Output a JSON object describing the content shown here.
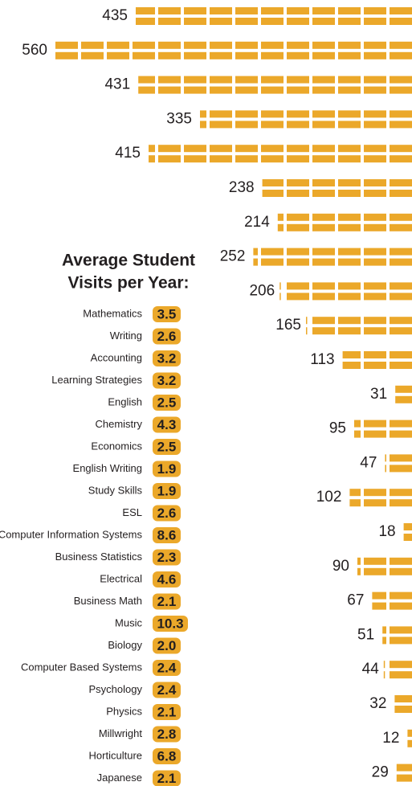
{
  "bars": {
    "values": [
      435,
      560,
      431,
      335,
      415,
      238,
      214,
      252,
      206,
      165,
      113,
      31,
      95,
      47,
      102,
      18,
      90,
      67,
      51,
      44,
      32,
      12,
      29
    ]
  },
  "visits": {
    "title_lines": [
      "Average Student",
      "Visits per Year:"
    ],
    "rows": [
      {
        "subject": "Mathematics",
        "value": "3.5"
      },
      {
        "subject": "Writing",
        "value": "2.6"
      },
      {
        "subject": "Accounting",
        "value": "3.2"
      },
      {
        "subject": "Learning Strategies",
        "value": "3.2"
      },
      {
        "subject": "English",
        "value": "2.5"
      },
      {
        "subject": "Chemistry",
        "value": "4.3"
      },
      {
        "subject": "Economics",
        "value": "2.5"
      },
      {
        "subject": "English Writing",
        "value": "1.9"
      },
      {
        "subject": "Study Skills",
        "value": "1.9"
      },
      {
        "subject": "ESL",
        "value": "2.6"
      },
      {
        "subject": "Computer Information Systems",
        "value": "8.6"
      },
      {
        "subject": "Business Statistics",
        "value": "2.3"
      },
      {
        "subject": "Electrical",
        "value": "4.6"
      },
      {
        "subject": "Business Math",
        "value": "2.1"
      },
      {
        "subject": "Music",
        "value": "10.3"
      },
      {
        "subject": "Biology",
        "value": "2.0"
      },
      {
        "subject": "Computer Based Systems",
        "value": "2.4"
      },
      {
        "subject": "Psychology",
        "value": "2.4"
      },
      {
        "subject": "Physics",
        "value": "2.1"
      },
      {
        "subject": "Millwright",
        "value": "2.8"
      },
      {
        "subject": "Horticulture",
        "value": "6.8"
      },
      {
        "subject": "Japanese",
        "value": "2.1"
      }
    ]
  }
}
